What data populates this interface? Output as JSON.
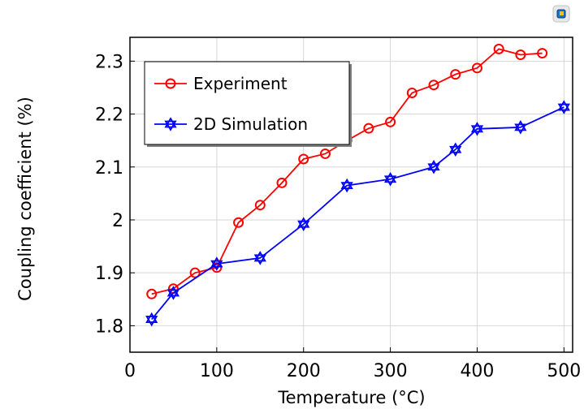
{
  "chart_data": {
    "type": "line",
    "xlabel": "Temperature (°C)",
    "ylabel": "Coupling coefficient (%)",
    "xlim": [
      0,
      510
    ],
    "ylim": [
      1.75,
      2.345
    ],
    "xticks": [
      0,
      100,
      200,
      300,
      400,
      500
    ],
    "yticks": [
      1.8,
      1.9,
      2,
      2.1,
      2.2,
      2.3
    ],
    "ytick_labels": [
      "1.8",
      "1.9",
      "2",
      "2.1",
      "2.2",
      "2.3"
    ],
    "grid": true,
    "legend_position": "top-left",
    "series": [
      {
        "name": "Experiment",
        "color": "#ff0000",
        "marker": "circle",
        "x": [
          25,
          50,
          75,
          100,
          125,
          150,
          175,
          200,
          225,
          250,
          275,
          300,
          325,
          350,
          375,
          400,
          425,
          450,
          475
        ],
        "y": [
          1.86,
          1.87,
          1.9,
          1.91,
          1.995,
          2.028,
          2.07,
          2.115,
          2.125,
          2.15,
          2.173,
          2.185,
          2.24,
          2.255,
          2.275,
          2.287,
          2.323,
          2.312,
          2.315
        ]
      },
      {
        "name": "2D Simulation",
        "color": "#0000ff",
        "marker": "star",
        "x": [
          25,
          50,
          100,
          150,
          200,
          250,
          300,
          350,
          375,
          400,
          450,
          500
        ],
        "y": [
          1.812,
          1.862,
          1.917,
          1.928,
          1.992,
          2.065,
          2.077,
          2.1,
          2.133,
          2.172,
          2.175,
          2.213
        ]
      }
    ]
  },
  "toolbar": {
    "icon": "app-logo-icon"
  }
}
